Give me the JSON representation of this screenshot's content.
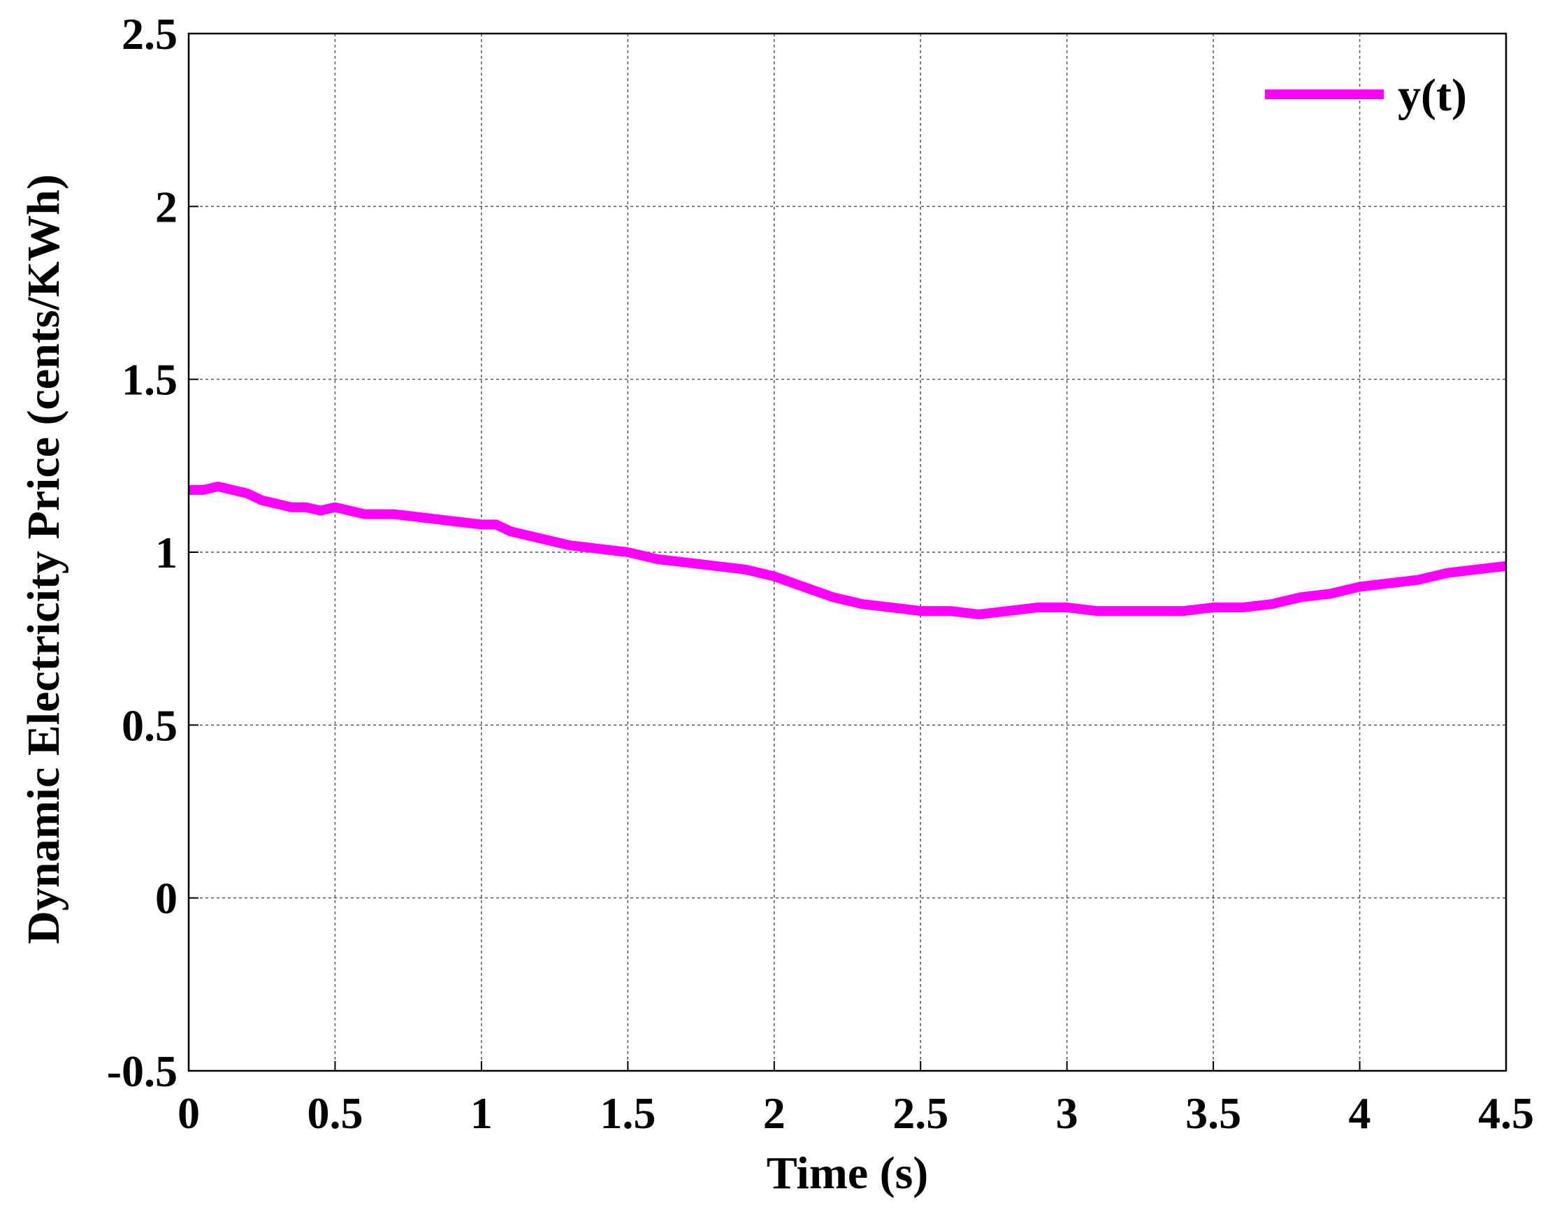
{
  "chart_data": {
    "type": "line",
    "xlabel": "Time (s)",
    "ylabel": "Dynamic Electricity Price (cents/KWh)",
    "xlim": [
      0,
      4.5
    ],
    "ylim": [
      -0.5,
      2.5
    ],
    "xticks": [
      0,
      0.5,
      1,
      1.5,
      2,
      2.5,
      3,
      3.5,
      4,
      4.5
    ],
    "xtick_labels": [
      "0",
      "0.5",
      "1",
      "1.5",
      "2",
      "2.5",
      "3",
      "3.5",
      "4",
      "4.5"
    ],
    "yticks": [
      -0.5,
      0,
      0.5,
      1,
      1.5,
      2,
      2.5
    ],
    "ytick_labels": [
      "-0.5",
      "0",
      "0.5",
      "1",
      "1.5",
      "2",
      "2.5"
    ],
    "grid": true,
    "legend_position": "top-right",
    "series": [
      {
        "name": "y(t)",
        "color": "#ff00ff",
        "x": [
          0,
          0.05,
          0.1,
          0.15,
          0.2,
          0.25,
          0.3,
          0.35,
          0.4,
          0.45,
          0.5,
          0.6,
          0.7,
          0.8,
          0.9,
          1.0,
          1.05,
          1.1,
          1.2,
          1.3,
          1.4,
          1.5,
          1.6,
          1.7,
          1.8,
          1.9,
          2.0,
          2.1,
          2.2,
          2.3,
          2.4,
          2.5,
          2.6,
          2.7,
          2.8,
          2.9,
          3.0,
          3.1,
          3.2,
          3.3,
          3.4,
          3.5,
          3.6,
          3.7,
          3.8,
          3.9,
          4.0,
          4.1,
          4.2,
          4.3,
          4.4,
          4.5
        ],
        "y": [
          1.18,
          1.18,
          1.19,
          1.18,
          1.17,
          1.15,
          1.14,
          1.13,
          1.13,
          1.12,
          1.13,
          1.11,
          1.11,
          1.1,
          1.09,
          1.08,
          1.08,
          1.06,
          1.04,
          1.02,
          1.01,
          1.0,
          0.98,
          0.97,
          0.96,
          0.95,
          0.93,
          0.9,
          0.87,
          0.85,
          0.84,
          0.83,
          0.83,
          0.82,
          0.83,
          0.84,
          0.84,
          0.83,
          0.83,
          0.83,
          0.83,
          0.84,
          0.84,
          0.85,
          0.87,
          0.88,
          0.9,
          0.91,
          0.92,
          0.94,
          0.95,
          0.96
        ]
      }
    ]
  }
}
